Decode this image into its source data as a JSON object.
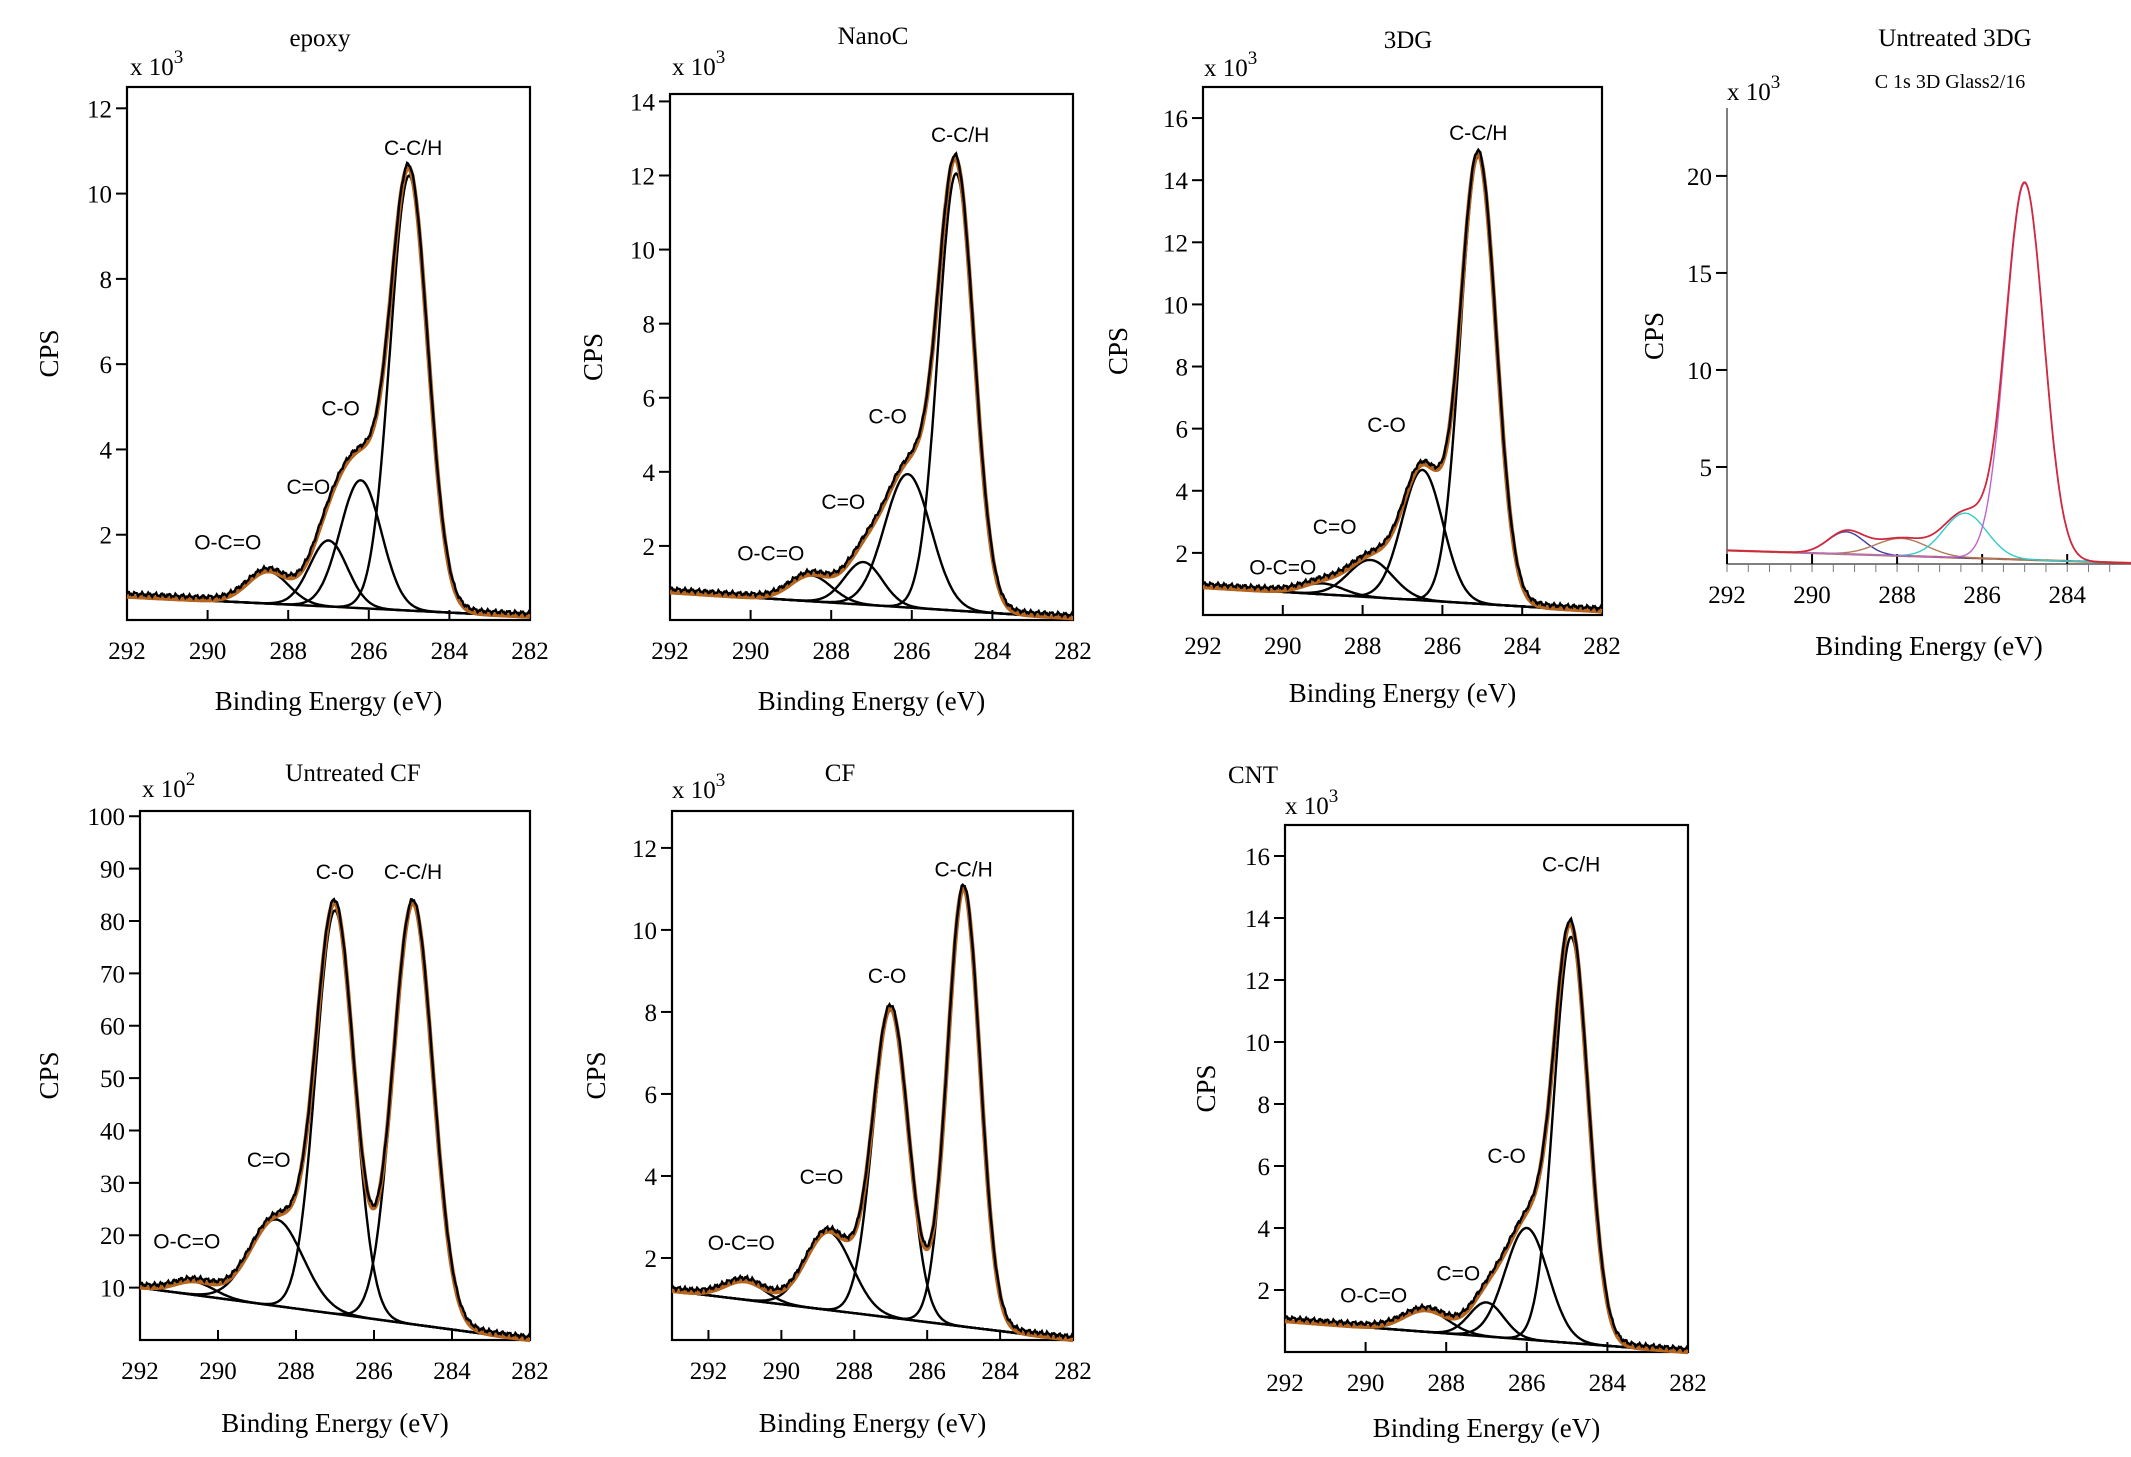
{
  "chart_data": [
    {
      "id": "epoxy",
      "type": "line",
      "title": "epoxy",
      "subtitle": "",
      "xlabel": "Binding Energy (eV)",
      "ylabel": "CPS",
      "multiplier": "x 10",
      "multiplier_exp": "3",
      "xlim": [
        292,
        282
      ],
      "ylim": [
        0,
        12.5
      ],
      "xticks": [
        "292",
        "290",
        "288",
        "286",
        "284",
        "282"
      ],
      "yticks": [
        "2",
        "4",
        "6",
        "8",
        "10",
        "12"
      ],
      "background": [
        0.55,
        0.08
      ],
      "peaks": [
        {
          "label": "O-C=O",
          "center": 288.5,
          "height": 0.75,
          "width": 1.2
        },
        {
          "label": "C=O",
          "center": 287.0,
          "height": 1.55,
          "width": 1.1
        },
        {
          "label": "C-O",
          "center": 286.2,
          "height": 3.0,
          "width": 1.2
        },
        {
          "label": "C-C/H",
          "center": 285.0,
          "height": 10.2,
          "width": 1.1
        }
      ],
      "peak_labels": [
        {
          "text": "O-C=O",
          "x": 289.5,
          "y": 1.65
        },
        {
          "text": "C=O",
          "x": 287.5,
          "y": 2.95
        },
        {
          "text": "C-O",
          "x": 286.7,
          "y": 4.8
        },
        {
          "text": "C-C/H",
          "x": 284.9,
          "y": 10.9
        }
      ]
    },
    {
      "id": "nanoc",
      "type": "line",
      "title": "NanoC",
      "subtitle": "",
      "xlabel": "Binding Energy (eV)",
      "ylabel": "CPS",
      "multiplier": "x 10",
      "multiplier_exp": "3",
      "xlim": [
        292,
        282
      ],
      "ylim": [
        0,
        14.2
      ],
      "xticks": [
        "292",
        "290",
        "288",
        "286",
        "284",
        "282"
      ],
      "yticks": [
        "2",
        "4",
        "6",
        "8",
        "10",
        "12",
        "14"
      ],
      "background": [
        0.75,
        0.05
      ],
      "peaks": [
        {
          "label": "O-C=O",
          "center": 288.5,
          "height": 0.7,
          "width": 1.2
        },
        {
          "label": "C=O",
          "center": 287.2,
          "height": 1.15,
          "width": 1.1
        },
        {
          "label": "C-O",
          "center": 286.1,
          "height": 3.6,
          "width": 1.35
        },
        {
          "label": "C-C/H",
          "center": 284.9,
          "height": 11.8,
          "width": 1.05
        }
      ],
      "peak_labels": [
        {
          "text": "O-C=O",
          "x": 289.5,
          "y": 1.6
        },
        {
          "text": "C=O",
          "x": 287.7,
          "y": 3.0
        },
        {
          "text": "C-O",
          "x": 286.6,
          "y": 5.3
        },
        {
          "text": "C-C/H",
          "x": 284.8,
          "y": 12.9
        }
      ]
    },
    {
      "id": "3dg",
      "type": "line",
      "title": "3DG",
      "subtitle": "",
      "xlabel": "Binding Energy (eV)",
      "ylabel": "CPS",
      "multiplier": "x 10",
      "multiplier_exp": "3",
      "xlim": [
        292,
        282
      ],
      "ylim": [
        0,
        17
      ],
      "xticks": [
        "292",
        "290",
        "288",
        "286",
        "284",
        "282"
      ],
      "yticks": [
        "2",
        "4",
        "6",
        "8",
        "10",
        "12",
        "14",
        "16"
      ],
      "background": [
        0.9,
        0.12
      ],
      "peaks": [
        {
          "label": "O-C=O",
          "center": 289.0,
          "height": 0.35,
          "width": 1.2
        },
        {
          "label": "C=O",
          "center": 287.8,
          "height": 1.2,
          "width": 1.3
        },
        {
          "label": "C-O",
          "center": 286.5,
          "height": 4.2,
          "width": 1.2
        },
        {
          "label": "C-C/H",
          "center": 285.1,
          "height": 14.4,
          "width": 1.05
        }
      ],
      "peak_labels": [
        {
          "text": "O-C=O",
          "x": 290.0,
          "y": 1.3
        },
        {
          "text": "C=O",
          "x": 288.7,
          "y": 2.6
        },
        {
          "text": "C-O",
          "x": 287.4,
          "y": 5.9
        },
        {
          "text": "C-C/H",
          "x": 285.1,
          "y": 15.3
        }
      ]
    },
    {
      "id": "untreated3dg",
      "type": "line",
      "title": "Untreated 3DG",
      "subtitle": "C 1s 3D Glass2/16",
      "xlabel": "Binding Energy (eV)",
      "ylabel": "CPS",
      "multiplier": "x 10",
      "multiplier_exp": "3",
      "xlim": [
        292,
        282.5
      ],
      "ylim": [
        0,
        23.5
      ],
      "xticks": [
        "292",
        "290",
        "288",
        "286",
        "284"
      ],
      "yticks": [
        "5",
        "10",
        "15",
        "20"
      ],
      "background": [
        0.7,
        0.05
      ],
      "peaks": [
        {
          "label": "",
          "center": 289.2,
          "height": 1.15,
          "width": 1.0
        },
        {
          "label": "",
          "center": 287.9,
          "height": 0.9,
          "width": 1.4
        },
        {
          "label": "",
          "center": 286.4,
          "height": 2.3,
          "width": 1.2
        },
        {
          "label": "",
          "center": 285.0,
          "height": 19.4,
          "width": 1.05
        }
      ],
      "peak_colors": [
        "#3d3d9e",
        "#b07a5a",
        "#33cccc",
        "#c064c8"
      ],
      "envelope_color": "#d0283c",
      "peak_labels": []
    },
    {
      "id": "untreatedcf",
      "type": "line",
      "title": "Untreated CF",
      "subtitle": "",
      "xlabel": "Binding Energy (eV)",
      "ylabel": "CPS",
      "multiplier": "x 10",
      "multiplier_exp": "2",
      "xlim": [
        292,
        282
      ],
      "ylim": [
        0,
        101
      ],
      "xticks": [
        "292",
        "290",
        "288",
        "286",
        "284",
        "282"
      ],
      "yticks": [
        "10",
        "20",
        "30",
        "40",
        "50",
        "60",
        "70",
        "80",
        "90",
        "100"
      ],
      "background": [
        10,
        0
      ],
      "peaks": [
        {
          "label": "O-C=O",
          "center": 290.6,
          "height": 2.5,
          "width": 1.2
        },
        {
          "label": "C=O",
          "center": 288.5,
          "height": 16.5,
          "width": 1.6
        },
        {
          "label": "C-O",
          "center": 287.0,
          "height": 77.0,
          "width": 1.15
        },
        {
          "label": "C-C/H",
          "center": 285.0,
          "height": 80.5,
          "width": 1.2
        }
      ],
      "peak_labels": [
        {
          "text": "O-C=O",
          "x": 290.8,
          "y": 17.5
        },
        {
          "text": "C=O",
          "x": 288.7,
          "y": 33
        },
        {
          "text": "C-O",
          "x": 287.0,
          "y": 88
        },
        {
          "text": "C-C/H",
          "x": 285.0,
          "y": 88
        }
      ]
    },
    {
      "id": "cf",
      "type": "line",
      "title": "CF",
      "subtitle": "",
      "xlabel": "Binding Energy (eV)",
      "ylabel": "CPS",
      "multiplier": "x 10",
      "multiplier_exp": "3",
      "xlim": [
        293,
        282
      ],
      "ylim": [
        0,
        12.9
      ],
      "xticks": [
        "292",
        "290",
        "288",
        "286",
        "284",
        "282"
      ],
      "yticks": [
        "2",
        "4",
        "6",
        "8",
        "10",
        "12"
      ],
      "background": [
        1.2,
        0.0
      ],
      "peaks": [
        {
          "label": "O-C=O",
          "center": 291.0,
          "height": 0.45,
          "width": 1.3
        },
        {
          "label": "C=O",
          "center": 288.7,
          "height": 1.9,
          "width": 1.5
        },
        {
          "label": "C-O",
          "center": 287.0,
          "height": 7.5,
          "width": 1.15
        },
        {
          "label": "C-C/H",
          "center": 285.0,
          "height": 10.7,
          "width": 1.05
        }
      ],
      "peak_labels": [
        {
          "text": "O-C=O",
          "x": 291.1,
          "y": 2.2
        },
        {
          "text": "C=O",
          "x": 288.9,
          "y": 3.8
        },
        {
          "text": "C-O",
          "x": 287.1,
          "y": 8.7
        },
        {
          "text": "C-C/H",
          "x": 285.0,
          "y": 11.3
        }
      ]
    },
    {
      "id": "cnt",
      "type": "line",
      "title": "CNT",
      "subtitle": "",
      "xlabel": "Binding Energy (eV)",
      "ylabel": "CPS",
      "multiplier": "x 10",
      "multiplier_exp": "3",
      "xlim": [
        292,
        282
      ],
      "ylim": [
        0,
        17
      ],
      "xticks": [
        "292",
        "290",
        "288",
        "286",
        "284",
        "282"
      ],
      "yticks": [
        "2",
        "4",
        "6",
        "8",
        "10",
        "12",
        "14",
        "16"
      ],
      "background": [
        1.0,
        0.0
      ],
      "peaks": [
        {
          "label": "O-C=O",
          "center": 288.5,
          "height": 0.7,
          "width": 1.3
        },
        {
          "label": "C=O",
          "center": 287.0,
          "height": 1.1,
          "width": 1.0
        },
        {
          "label": "C-O",
          "center": 286.0,
          "height": 3.6,
          "width": 1.25
        },
        {
          "label": "C-C/H",
          "center": 284.9,
          "height": 13.1,
          "width": 1.0
        }
      ],
      "peak_labels": [
        {
          "text": "O-C=O",
          "x": 289.8,
          "y": 1.6
        },
        {
          "text": "C=O",
          "x": 287.7,
          "y": 2.3
        },
        {
          "text": "C-O",
          "x": 286.5,
          "y": 6.1
        },
        {
          "text": "C-C/H",
          "x": 284.9,
          "y": 15.5
        }
      ]
    }
  ],
  "colors": {
    "axis": "#000000",
    "component": "#000000",
    "envelope": "#000000",
    "envelope_shadow": "#b5651d",
    "background_line": "#b5651d"
  }
}
